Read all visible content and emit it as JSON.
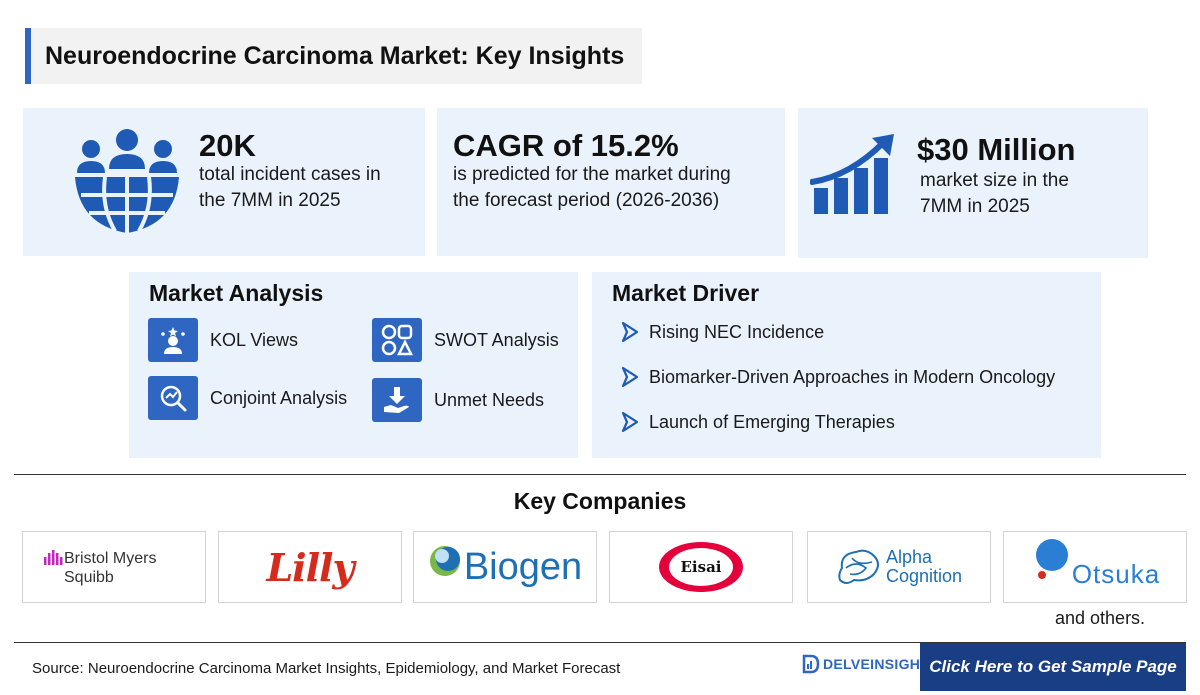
{
  "title": "Neuroendocrine Carcinoma Market: Key Insights",
  "stats": [
    {
      "value": "20K",
      "desc_line1": "total incident cases in",
      "desc_line2": "the 7MM in 2025",
      "icon": "people-globe-icon"
    },
    {
      "value": "CAGR of 15.2%",
      "desc_line1": "is predicted for the market during",
      "desc_line2": "the forecast period (2026-2036)"
    },
    {
      "value": "$30 Million",
      "desc_line1": "market size in the",
      "desc_line2": "7MM in 2025",
      "icon": "growth-chart-icon"
    }
  ],
  "market_analysis": {
    "heading": "Market Analysis",
    "items": [
      {
        "label": "KOL Views",
        "icon": "expert-icon"
      },
      {
        "label": "SWOT Analysis",
        "icon": "swot-icon"
      },
      {
        "label": "Conjoint Analysis",
        "icon": "analysis-icon"
      },
      {
        "label": "Unmet Needs",
        "icon": "hand-download-icon"
      }
    ]
  },
  "market_driver": {
    "heading": "Market Driver",
    "items": [
      "Rising NEC Incidence",
      "Biomarker-Driven Approaches in Modern Oncology",
      "Launch of Emerging Therapies"
    ]
  },
  "key_companies": {
    "heading": "Key Companies",
    "logos": {
      "bms_line1": "Bristol Myers",
      "bms_line2": "Squibb",
      "lilly": "Lilly",
      "biogen": "Biogen",
      "eisai": "Eisai",
      "alpha_line1": "Alpha",
      "alpha_line2": "Cognition",
      "otsuka": "Otsuka"
    },
    "others": "and others."
  },
  "footer": {
    "source": "Source: Neuroendocrine Carcinoma Market Insights, Epidemiology, and Market Forecast",
    "brand": "DELVEINSIGHT",
    "cta": "Click Here to Get Sample Page"
  },
  "colors": {
    "accent": "#2f66c1",
    "panel_bg": "#eaf2fc",
    "cta_bg": "#1a3e84",
    "eisai_red": "#e4003b",
    "lilly_red": "#d52b1e",
    "biogen_blue": "#1f6fb5",
    "bms_purple": "#be2bbb"
  }
}
